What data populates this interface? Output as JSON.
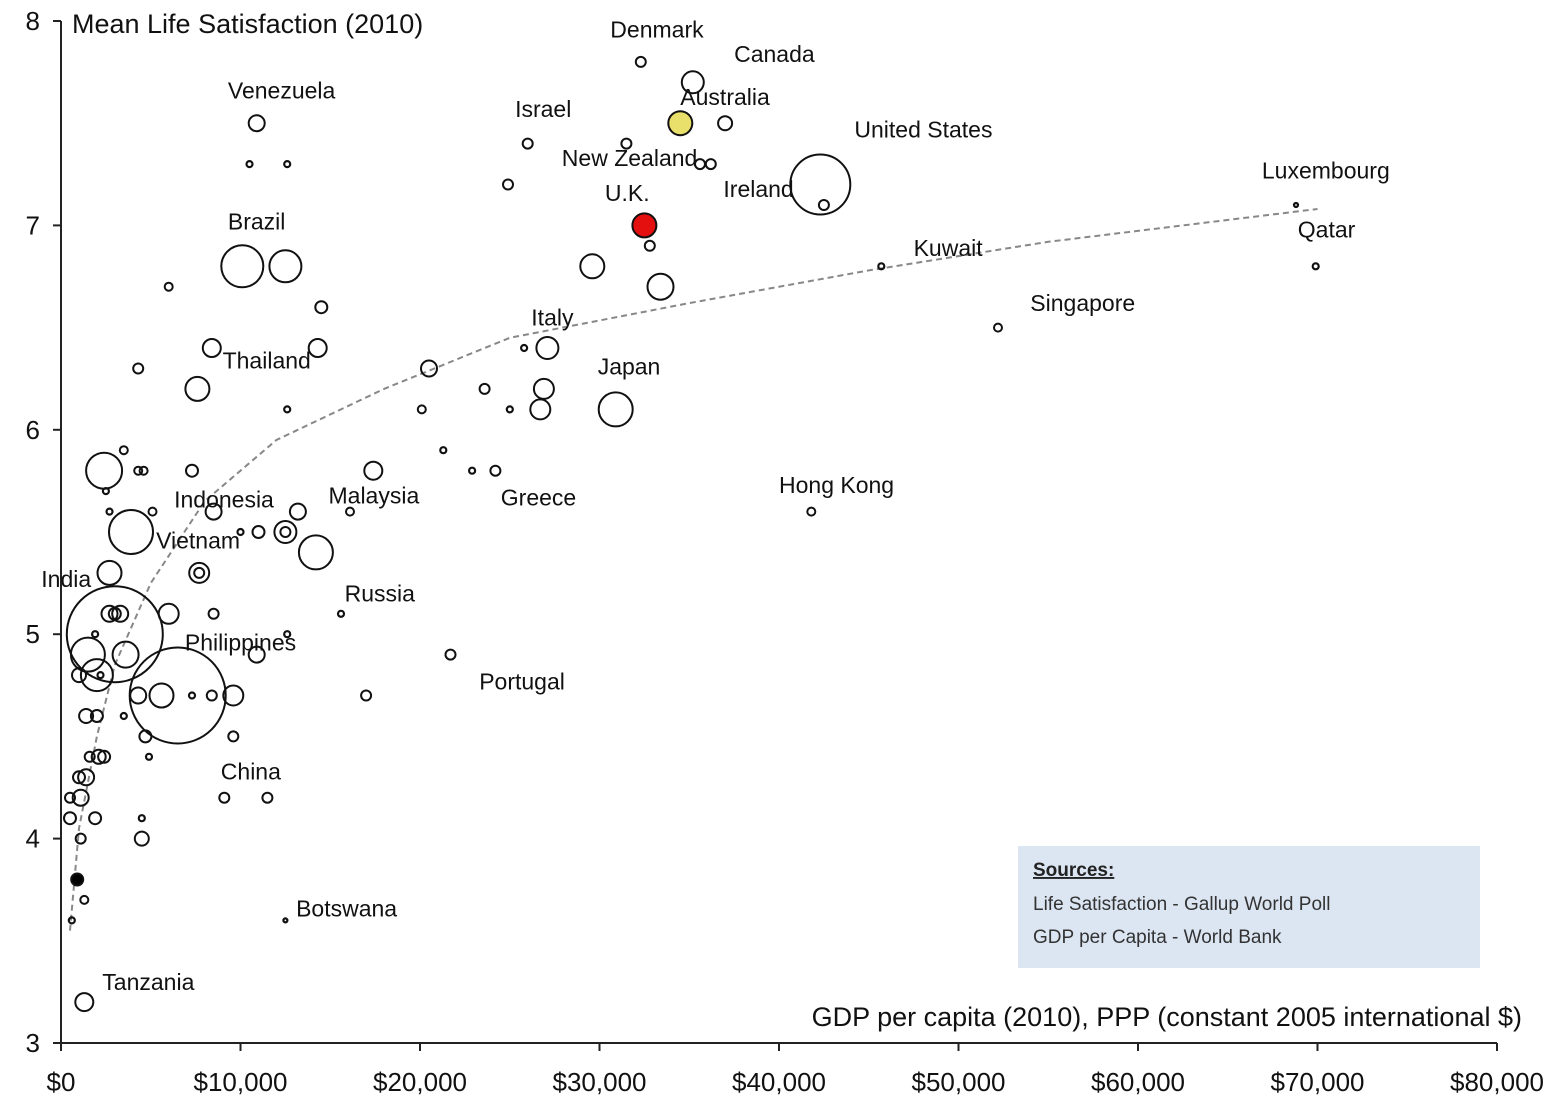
{
  "chart_data": {
    "type": "scatter",
    "title": "Mean Life Satisfaction (2010)",
    "xlabel": "GDP per capita (2010), PPP (constant 2005 international $)",
    "ylabel": "",
    "xlim": [
      0,
      80000
    ],
    "ylim": [
      3,
      8
    ],
    "x_ticks": [
      0,
      10000,
      20000,
      30000,
      40000,
      50000,
      60000,
      70000,
      80000
    ],
    "x_tick_labels": [
      "$0",
      "$10,000",
      "$20,000",
      "$30,000",
      "$40,000",
      "$50,000",
      "$60,000",
      "$70,000",
      "$80,000"
    ],
    "y_ticks": [
      3,
      4,
      5,
      6,
      7,
      8
    ],
    "y_tick_labels": [
      "3",
      "4",
      "5",
      "6",
      "7",
      "8"
    ],
    "grid": false,
    "bubble_size_meaning": "population",
    "trendline": {
      "style": "dashed",
      "color": "#888888",
      "points": [
        [
          500,
          3.55
        ],
        [
          1000,
          4.05
        ],
        [
          2000,
          4.5
        ],
        [
          3000,
          4.85
        ],
        [
          5000,
          5.25
        ],
        [
          8000,
          5.65
        ],
        [
          12000,
          5.95
        ],
        [
          18000,
          6.2
        ],
        [
          25000,
          6.45
        ],
        [
          35000,
          6.62
        ],
        [
          45000,
          6.78
        ],
        [
          55000,
          6.92
        ],
        [
          70000,
          7.08
        ]
      ]
    },
    "points": [
      {
        "label": "Denmark",
        "x": 32300,
        "y": 7.8,
        "size": 5
      },
      {
        "label": "Canada",
        "x": 35200,
        "y": 7.7,
        "size": 11
      },
      {
        "label": "Australia",
        "x": 34500,
        "y": 7.5,
        "size": 12,
        "color": "#e8e06a"
      },
      {
        "label": "",
        "x": 37000,
        "y": 7.5,
        "size": 7
      },
      {
        "label": "Israel",
        "x": 26000,
        "y": 7.4,
        "size": 5
      },
      {
        "label": "",
        "x": 31500,
        "y": 7.4,
        "size": 5
      },
      {
        "label": "",
        "x": 35600,
        "y": 7.3,
        "size": 5
      },
      {
        "label": "",
        "x": 36200,
        "y": 7.3,
        "size": 5
      },
      {
        "label": "New Zealand",
        "x": 24900,
        "y": 7.2,
        "size": 5
      },
      {
        "label": "United States",
        "x": 42300,
        "y": 7.2,
        "size": 30
      },
      {
        "label": "Ireland",
        "x": 42500,
        "y": 7.1,
        "size": 5
      },
      {
        "label": "U.K.",
        "x": 32500,
        "y": 7.0,
        "size": 12,
        "color": "#e41010"
      },
      {
        "label": "",
        "x": 32800,
        "y": 6.9,
        "size": 5
      },
      {
        "label": "",
        "x": 29600,
        "y": 6.8,
        "size": 12
      },
      {
        "label": "",
        "x": 33400,
        "y": 6.7,
        "size": 13
      },
      {
        "label": "Venezuela",
        "x": 10900,
        "y": 7.5,
        "size": 8
      },
      {
        "label": "",
        "x": 10500,
        "y": 7.3,
        "size": 3
      },
      {
        "label": "",
        "x": 12600,
        "y": 7.3,
        "size": 3
      },
      {
        "label": "Brazil",
        "x": 10100,
        "y": 6.8,
        "size": 21
      },
      {
        "label": "",
        "x": 12500,
        "y": 6.8,
        "size": 16
      },
      {
        "label": "",
        "x": 6000,
        "y": 6.7,
        "size": 4
      },
      {
        "label": "",
        "x": 14500,
        "y": 6.6,
        "size": 6
      },
      {
        "label": "",
        "x": 14300,
        "y": 6.4,
        "size": 9
      },
      {
        "label": "Thailand",
        "x": 8400,
        "y": 6.4,
        "size": 9
      },
      {
        "label": "",
        "x": 4300,
        "y": 6.3,
        "size": 5
      },
      {
        "label": "",
        "x": 7600,
        "y": 6.2,
        "size": 12
      },
      {
        "label": "",
        "x": 12600,
        "y": 6.1,
        "size": 3
      },
      {
        "label": "",
        "x": 20500,
        "y": 6.3,
        "size": 8
      },
      {
        "label": "Italy",
        "x": 27100,
        "y": 6.4,
        "size": 11
      },
      {
        "label": "",
        "x": 25800,
        "y": 6.4,
        "size": 3
      },
      {
        "label": "Japan",
        "x": 30900,
        "y": 6.1,
        "size": 17
      },
      {
        "label": "",
        "x": 26900,
        "y": 6.2,
        "size": 10
      },
      {
        "label": "",
        "x": 26700,
        "y": 6.1,
        "size": 10
      },
      {
        "label": "",
        "x": 23600,
        "y": 6.2,
        "size": 5
      },
      {
        "label": "",
        "x": 25000,
        "y": 6.1,
        "size": 3
      },
      {
        "label": "",
        "x": 20100,
        "y": 6.1,
        "size": 4
      },
      {
        "label": "",
        "x": 21300,
        "y": 5.9,
        "size": 3
      },
      {
        "label": "",
        "x": 22900,
        "y": 5.8,
        "size": 3
      },
      {
        "label": "Greece",
        "x": 24200,
        "y": 5.8,
        "size": 5
      },
      {
        "label": "",
        "x": 17400,
        "y": 5.8,
        "size": 9
      },
      {
        "label": "",
        "x": 16100,
        "y": 5.6,
        "size": 4
      },
      {
        "label": "Malaysia",
        "x": 13200,
        "y": 5.6,
        "size": 8
      },
      {
        "label": "",
        "x": 12500,
        "y": 5.5,
        "size": 11
      },
      {
        "label": "",
        "x": 12500,
        "y": 5.5,
        "size": 5
      },
      {
        "label": "",
        "x": 11000,
        "y": 5.5,
        "size": 6
      },
      {
        "label": "",
        "x": 10000,
        "y": 5.5,
        "size": 3
      },
      {
        "label": "Russia",
        "x": 14200,
        "y": 5.4,
        "size": 17
      },
      {
        "label": "",
        "x": 15600,
        "y": 5.1,
        "size": 3
      },
      {
        "label": "",
        "x": 8500,
        "y": 5.6,
        "size": 8
      },
      {
        "label": "",
        "x": 7300,
        "y": 5.8,
        "size": 6
      },
      {
        "label": "",
        "x": 7700,
        "y": 5.3,
        "size": 10
      },
      {
        "label": "",
        "x": 7700,
        "y": 5.3,
        "size": 5
      },
      {
        "label": "",
        "x": 6000,
        "y": 5.1,
        "size": 10
      },
      {
        "label": "",
        "x": 8500,
        "y": 5.1,
        "size": 5
      },
      {
        "label": "",
        "x": 12600,
        "y": 5.0,
        "size": 3
      },
      {
        "label": "",
        "x": 10900,
        "y": 4.9,
        "size": 8
      },
      {
        "label": "Portugal",
        "x": 21700,
        "y": 4.9,
        "size": 5
      },
      {
        "label": "",
        "x": 17000,
        "y": 4.7,
        "size": 5
      },
      {
        "label": "Hong Kong",
        "x": 41800,
        "y": 5.6,
        "size": 4
      },
      {
        "label": "Kuwait",
        "x": 45700,
        "y": 6.8,
        "size": 3
      },
      {
        "label": "Singapore",
        "x": 52200,
        "y": 6.5,
        "size": 4
      },
      {
        "label": "Luxembourg",
        "x": 68800,
        "y": 7.1,
        "size": 2
      },
      {
        "label": "Qatar",
        "x": 69900,
        "y": 6.8,
        "size": 3
      },
      {
        "label": "",
        "x": 2400,
        "y": 5.8,
        "size": 18
      },
      {
        "label": "",
        "x": 3500,
        "y": 5.9,
        "size": 4
      },
      {
        "label": "",
        "x": 4300,
        "y": 5.8,
        "size": 4
      },
      {
        "label": "",
        "x": 4600,
        "y": 5.8,
        "size": 4
      },
      {
        "label": "",
        "x": 2500,
        "y": 5.7,
        "size": 3
      },
      {
        "label": "",
        "x": 2700,
        "y": 5.6,
        "size": 3
      },
      {
        "label": "",
        "x": 5100,
        "y": 5.6,
        "size": 4
      },
      {
        "label": "Indonesia",
        "x": 3900,
        "y": 5.5,
        "size": 22
      },
      {
        "label": "Vietnam",
        "x": 2700,
        "y": 5.3,
        "size": 12
      },
      {
        "label": "",
        "x": 2700,
        "y": 5.1,
        "size": 8
      },
      {
        "label": "",
        "x": 3300,
        "y": 5.1,
        "size": 8
      },
      {
        "label": "",
        "x": 3000,
        "y": 5.1,
        "size": 6
      },
      {
        "label": "India",
        "x": 3000,
        "y": 5.0,
        "size": 48
      },
      {
        "label": "",
        "x": 1900,
        "y": 5.0,
        "size": 3
      },
      {
        "label": "Philippines",
        "x": 3600,
        "y": 4.9,
        "size": 13
      },
      {
        "label": "",
        "x": 1500,
        "y": 4.9,
        "size": 17
      },
      {
        "label": "",
        "x": 2000,
        "y": 4.8,
        "size": 16
      },
      {
        "label": "",
        "x": 1000,
        "y": 4.8,
        "size": 7
      },
      {
        "label": "",
        "x": 2200,
        "y": 4.8,
        "size": 3
      },
      {
        "label": "China",
        "x": 6500,
        "y": 4.7,
        "size": 48
      },
      {
        "label": "",
        "x": 5600,
        "y": 4.7,
        "size": 12
      },
      {
        "label": "",
        "x": 4300,
        "y": 4.7,
        "size": 8
      },
      {
        "label": "",
        "x": 7300,
        "y": 4.7,
        "size": 3
      },
      {
        "label": "",
        "x": 8400,
        "y": 4.7,
        "size": 5
      },
      {
        "label": "",
        "x": 9600,
        "y": 4.7,
        "size": 10
      },
      {
        "label": "",
        "x": 3500,
        "y": 4.6,
        "size": 3
      },
      {
        "label": "",
        "x": 1400,
        "y": 4.6,
        "size": 7
      },
      {
        "label": "",
        "x": 2000,
        "y": 4.6,
        "size": 6
      },
      {
        "label": "",
        "x": 4700,
        "y": 4.5,
        "size": 6
      },
      {
        "label": "",
        "x": 9600,
        "y": 4.5,
        "size": 5
      },
      {
        "label": "",
        "x": 1600,
        "y": 4.4,
        "size": 5
      },
      {
        "label": "",
        "x": 2100,
        "y": 4.4,
        "size": 7
      },
      {
        "label": "",
        "x": 2400,
        "y": 4.4,
        "size": 6
      },
      {
        "label": "",
        "x": 4900,
        "y": 4.4,
        "size": 3
      },
      {
        "label": "",
        "x": 1000,
        "y": 4.3,
        "size": 6
      },
      {
        "label": "",
        "x": 1400,
        "y": 4.3,
        "size": 8
      },
      {
        "label": "",
        "x": 500,
        "y": 4.2,
        "size": 5
      },
      {
        "label": "",
        "x": 1100,
        "y": 4.2,
        "size": 8
      },
      {
        "label": "",
        "x": 9100,
        "y": 4.2,
        "size": 5
      },
      {
        "label": "",
        "x": 11500,
        "y": 4.2,
        "size": 5
      },
      {
        "label": "",
        "x": 500,
        "y": 4.1,
        "size": 6
      },
      {
        "label": "",
        "x": 1900,
        "y": 4.1,
        "size": 6
      },
      {
        "label": "",
        "x": 4500,
        "y": 4.1,
        "size": 3
      },
      {
        "label": "",
        "x": 1100,
        "y": 4.0,
        "size": 5
      },
      {
        "label": "",
        "x": 4500,
        "y": 4.0,
        "size": 7
      },
      {
        "label": "",
        "x": 900,
        "y": 3.8,
        "size": 6,
        "color": "#000000"
      },
      {
        "label": "",
        "x": 1300,
        "y": 3.7,
        "size": 4
      },
      {
        "label": "",
        "x": 600,
        "y": 3.6,
        "size": 3
      },
      {
        "label": "Botswana",
        "x": 12500,
        "y": 3.6,
        "size": 2
      },
      {
        "label": "Tanzania",
        "x": 1300,
        "y": 3.2,
        "size": 9
      }
    ],
    "labels": [
      {
        "text": "Denmark",
        "x": 30600,
        "y": 7.92
      },
      {
        "text": "Canada",
        "x": 37500,
        "y": 7.8
      },
      {
        "text": "Australia",
        "x": 34500,
        "y": 7.59
      },
      {
        "text": "Israel",
        "x": 25300,
        "y": 7.53
      },
      {
        "text": "United States",
        "x": 44200,
        "y": 7.43
      },
      {
        "text": "New Zealand",
        "x": 27900,
        "y": 7.29
      },
      {
        "text": "U.K.",
        "x": 30300,
        "y": 7.12
      },
      {
        "text": "Ireland",
        "x": 36900,
        "y": 7.14
      },
      {
        "text": "Luxembourg",
        "x": 66900,
        "y": 7.23
      },
      {
        "text": "Venezuela",
        "x": 9300,
        "y": 7.62
      },
      {
        "text": "Brazil",
        "x": 9300,
        "y": 6.98
      },
      {
        "text": "Kuwait",
        "x": 47500,
        "y": 6.85
      },
      {
        "text": "Qatar",
        "x": 68900,
        "y": 6.94
      },
      {
        "text": "Singapore",
        "x": 54000,
        "y": 6.58
      },
      {
        "text": "Italy",
        "x": 26200,
        "y": 6.51
      },
      {
        "text": "Thailand",
        "x": 9000,
        "y": 6.3
      },
      {
        "text": "Japan",
        "x": 29900,
        "y": 6.27
      },
      {
        "text": "Hong Kong",
        "x": 40000,
        "y": 5.69
      },
      {
        "text": "Malaysia",
        "x": 14900,
        "y": 5.64
      },
      {
        "text": "Indonesia",
        "x": 6300,
        "y": 5.62
      },
      {
        "text": "Greece",
        "x": 24500,
        "y": 5.63
      },
      {
        "text": "Vietnam",
        "x": 5300,
        "y": 5.42
      },
      {
        "text": "India",
        "x": -1100,
        "y": 5.23
      },
      {
        "text": "Russia",
        "x": 15800,
        "y": 5.16
      },
      {
        "text": "Philippines",
        "x": 6900,
        "y": 4.92
      },
      {
        "text": "Portugal",
        "x": 23300,
        "y": 4.73
      },
      {
        "text": "China",
        "x": 8900,
        "y": 4.29
      },
      {
        "text": "Botswana",
        "x": 13100,
        "y": 3.62
      },
      {
        "text": "Tanzania",
        "x": 2300,
        "y": 3.26
      }
    ],
    "legend": "bottom-right",
    "sources": {
      "title": "Sources:",
      "lines": [
        "Life Satisfaction - Gallup World Poll",
        "GDP per Capita - World Bank"
      ]
    }
  }
}
